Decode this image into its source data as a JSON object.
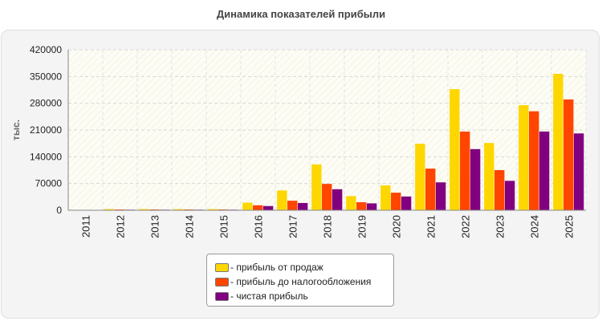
{
  "chart_data": {
    "type": "bar",
    "title": "Динамика показателей прибыли",
    "ylabel": "тыс.",
    "xlabel": "",
    "ylim": [
      0,
      420000
    ],
    "yticks": [
      0,
      70000,
      140000,
      210000,
      280000,
      350000,
      420000
    ],
    "grid": true,
    "legend_position": "bottom-center",
    "categories": [
      "2011",
      "2012",
      "2013",
      "2014",
      "2015",
      "2016",
      "2017",
      "2018",
      "2019",
      "2020",
      "2021",
      "2022",
      "2023",
      "2024",
      "2025"
    ],
    "series": [
      {
        "name": "- прибыль от продаж",
        "color": "#ffd700",
        "values": [
          1000,
          3000,
          3000,
          3000,
          3000,
          20000,
          52000,
          120000,
          37000,
          65000,
          174000,
          317000,
          176000,
          275000,
          357000
        ]
      },
      {
        "name": "- прибыль до налогообложения",
        "color": "#ff4500",
        "values": [
          1000,
          2000,
          2000,
          2000,
          2000,
          13000,
          25000,
          69000,
          21000,
          46000,
          109000,
          206000,
          105000,
          259000,
          290000
        ]
      },
      {
        "name": "- чистая прибыль",
        "color": "#800080",
        "values": [
          1000,
          1500,
          1500,
          1500,
          1500,
          11000,
          19000,
          55000,
          18000,
          36000,
          73000,
          160000,
          77000,
          206000,
          201000
        ]
      }
    ]
  }
}
